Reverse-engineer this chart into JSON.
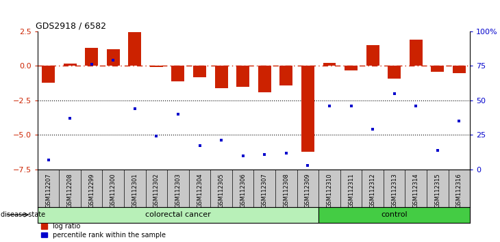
{
  "title": "GDS2918 / 6582",
  "samples": [
    "GSM112207",
    "GSM112208",
    "GSM112299",
    "GSM112300",
    "GSM112301",
    "GSM112302",
    "GSM112303",
    "GSM112304",
    "GSM112305",
    "GSM112306",
    "GSM112307",
    "GSM112308",
    "GSM112309",
    "GSM112310",
    "GSM112311",
    "GSM112312",
    "GSM112313",
    "GSM112314",
    "GSM112315",
    "GSM112316"
  ],
  "log_ratio": [
    -1.2,
    0.15,
    1.3,
    1.2,
    2.45,
    -0.1,
    -1.1,
    -0.8,
    -1.6,
    -1.5,
    -1.9,
    -1.4,
    -6.2,
    0.2,
    -0.3,
    1.5,
    -0.9,
    1.9,
    -0.4,
    -0.5
  ],
  "percentile": [
    7,
    37,
    76,
    79,
    44,
    24,
    40,
    17,
    21,
    10,
    11,
    12,
    3,
    46,
    46,
    29,
    55,
    46,
    14,
    35
  ],
  "n_colorectal": 13,
  "n_control": 7,
  "bar_color": "#cc2200",
  "dot_color": "#0000cc",
  "ref_line_color": "#cc2200",
  "ylim": [
    -7.5,
    2.5
  ],
  "yticks_left": [
    -7.5,
    -5.0,
    -2.5,
    0.0,
    2.5
  ],
  "yticks_right": [
    0,
    25,
    50,
    75,
    100
  ],
  "dotted_lines": [
    -2.5,
    -5.0
  ],
  "bg_color": "#ffffff",
  "label_bg": "#c8c8c8",
  "cc_color": "#b8f0b8",
  "ctrl_color": "#44cc44"
}
